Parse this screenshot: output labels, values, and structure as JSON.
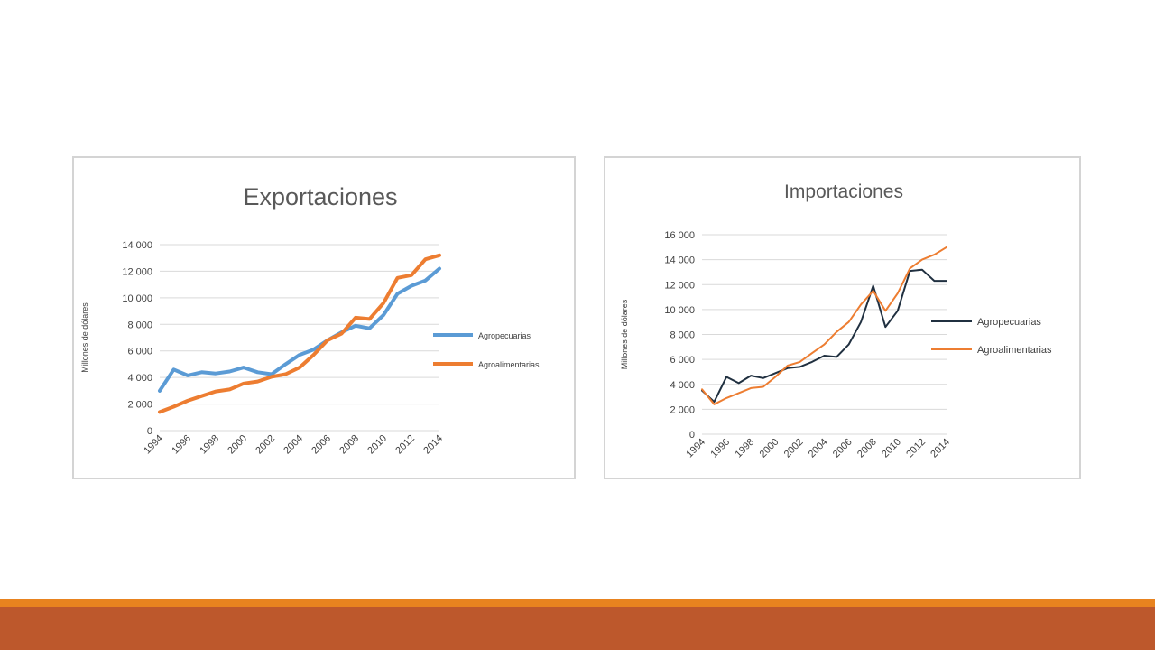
{
  "chart_data": [
    {
      "type": "line",
      "title": "Exportaciones",
      "ylabel": "Millones  de dólares",
      "ylim": [
        0,
        14000
      ],
      "yticks": [
        0,
        2000,
        4000,
        6000,
        8000,
        10000,
        12000,
        14000
      ],
      "ytick_labels": [
        "0",
        "2 000",
        "4 000",
        "6 000",
        "8 000",
        "10 000",
        "12 000",
        "14 000"
      ],
      "xlim": [
        1994,
        2014
      ],
      "xtick_labels": [
        "1994",
        "1996",
        "1998",
        "2000",
        "2002",
        "2004",
        "2006",
        "2008",
        "2010",
        "2012",
        "2014"
      ],
      "legend_position": "right",
      "x": [
        1994,
        1995,
        1996,
        1997,
        1998,
        1999,
        2000,
        2001,
        2002,
        2003,
        2004,
        2005,
        2006,
        2007,
        2008,
        2009,
        2010,
        2011,
        2012,
        2013,
        2014
      ],
      "series": [
        {
          "name": "Agropecuarias",
          "color": "#5b9bd5",
          "values": [
            3000,
            4600,
            4150,
            4400,
            4300,
            4450,
            4750,
            4400,
            4250,
            5000,
            5700,
            6100,
            6800,
            7400,
            7900,
            7700,
            8700,
            10300,
            10900,
            11300,
            12200
          ]
        },
        {
          "name": "Agroalimentarias",
          "color": "#ed7d31",
          "values": [
            1400,
            1800,
            2250,
            2600,
            2950,
            3100,
            3550,
            3700,
            4050,
            4250,
            4750,
            5700,
            6800,
            7300,
            8500,
            8400,
            9600,
            11500,
            11700,
            12900,
            13200
          ]
        }
      ]
    },
    {
      "type": "line",
      "title": "Importaciones",
      "ylabel": "Millones  de dólares",
      "ylim": [
        0,
        16000
      ],
      "yticks": [
        0,
        2000,
        4000,
        6000,
        8000,
        10000,
        12000,
        14000,
        16000
      ],
      "ytick_labels": [
        "0",
        "2 000",
        "4 000",
        "6 000",
        "8 000",
        "10 000",
        "12 000",
        "14 000",
        "16 000"
      ],
      "xlim": [
        1994,
        2014
      ],
      "xtick_labels": [
        "1994",
        "1996",
        "1998",
        "2000",
        "2002",
        "2004",
        "2006",
        "2008",
        "2010",
        "2012",
        "2014"
      ],
      "legend_position": "right",
      "x": [
        1994,
        1995,
        1996,
        1997,
        1998,
        1999,
        2000,
        2001,
        2002,
        2003,
        2004,
        2005,
        2006,
        2007,
        2008,
        2009,
        2010,
        2011,
        2012,
        2013,
        2014
      ],
      "series": [
        {
          "name": "Agropecuarias",
          "color": "#203040",
          "values": [
            3500,
            2600,
            4600,
            4100,
            4700,
            4500,
            4900,
            5300,
            5400,
            5800,
            6300,
            6200,
            7200,
            9000,
            11900,
            8600,
            9900,
            13100,
            13200,
            12300,
            12300
          ]
        },
        {
          "name": "Agroalimentarias",
          "color": "#ed7d31",
          "values": [
            3600,
            2400,
            2900,
            3300,
            3700,
            3800,
            4600,
            5500,
            5800,
            6500,
            7200,
            8200,
            9000,
            10400,
            11500,
            9900,
            11300,
            13300,
            14000,
            14400,
            15000
          ]
        }
      ]
    }
  ],
  "theme": {
    "gridline": "#d9d9d9",
    "axis_text": "#404040",
    "title_text": "#595959",
    "bottom_stripe_thin": "#e8831f",
    "bottom_stripe_thick": "#bd582c"
  }
}
